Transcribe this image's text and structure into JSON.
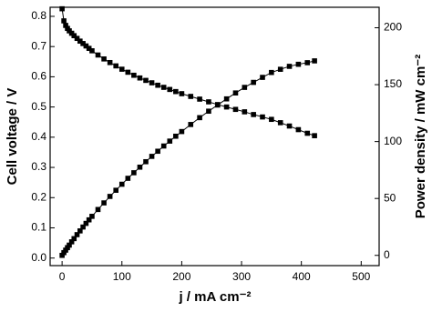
{
  "chart_data": {
    "type": "line",
    "x_label": "j / mA cm⁻²",
    "y_label": "Cell voltage / V",
    "y2_label": "Power density / mW cm⁻²",
    "x": [
      0,
      3,
      6,
      9,
      12,
      16,
      20,
      25,
      30,
      35,
      40,
      45,
      50,
      60,
      70,
      80,
      90,
      100,
      110,
      120,
      130,
      140,
      150,
      160,
      170,
      180,
      190,
      200,
      215,
      230,
      245,
      260,
      275,
      290,
      305,
      320,
      335,
      350,
      365,
      380,
      395,
      410,
      422
    ],
    "series": [
      {
        "color": "#000000",
        "values": [
          0.825,
          0.785,
          0.77,
          0.76,
          0.752,
          0.744,
          0.736,
          0.727,
          0.718,
          0.71,
          0.702,
          0.694,
          0.686,
          0.672,
          0.659,
          0.647,
          0.636,
          0.625,
          0.615,
          0.605,
          0.596,
          0.588,
          0.58,
          0.572,
          0.565,
          0.558,
          0.551,
          0.544,
          0.535,
          0.526,
          0.517,
          0.508,
          0.5,
          0.492,
          0.484,
          0.475,
          0.467,
          0.459,
          0.448,
          0.437,
          0.425,
          0.413,
          0.405
        ]
      },
      {
        "color": "#000000",
        "axis": "y2",
        "values": [
          0,
          2.4,
          4.6,
          6.8,
          9.0,
          11.9,
          14.7,
          18.2,
          21.5,
          24.9,
          28.1,
          31.2,
          34.3,
          40.3,
          46.1,
          51.8,
          57.2,
          62.5,
          67.7,
          72.6,
          77.5,
          82.3,
          87.0,
          91.5,
          96.1,
          100.4,
          104.7,
          108.8,
          115.0,
          121.0,
          126.7,
          132.1,
          137.5,
          142.7,
          147.6,
          152.0,
          156.4,
          160.7,
          163.5,
          166.1,
          167.9,
          169.3,
          170.9
        ]
      }
    ],
    "xlim": [
      -20,
      530
    ],
    "xticks": [
      0,
      100,
      200,
      300,
      400,
      500
    ],
    "ylim": [
      -0.025,
      0.83
    ],
    "yticks": [
      {
        "value": 0,
        "label": "0.0"
      },
      0.1,
      0.2,
      0.3,
      0.4,
      0.5,
      0.6,
      0.7,
      0.8
    ],
    "y2lim": [
      -9,
      218
    ],
    "y2ticks": [
      0,
      50,
      100,
      150,
      200
    ]
  }
}
